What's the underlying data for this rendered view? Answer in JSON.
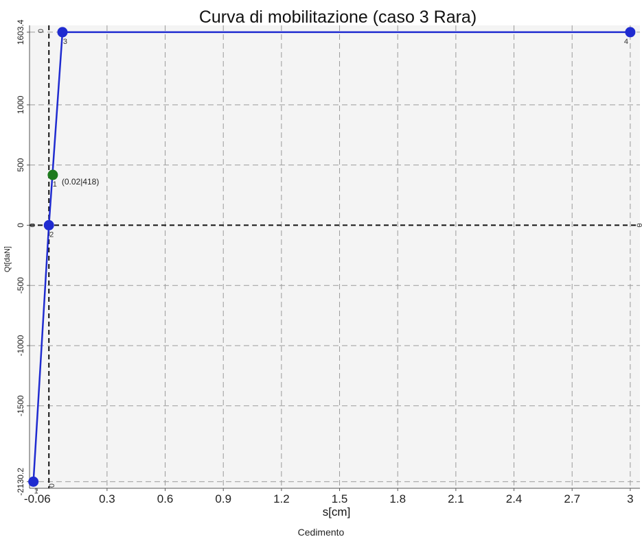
{
  "caption": "Cedimento",
  "chart_data": {
    "type": "line",
    "title": "Curva di mobilitazione (caso 3 Rara)",
    "xlabel": "s[cm]",
    "ylabel": "Qt[daN]",
    "xlim": [
      -0.1,
      3.05
    ],
    "ylim": [
      -2185,
      1660
    ],
    "x_ticks": [
      -0.06,
      0.3,
      0.6,
      0.9,
      1.2,
      1.5,
      1.8,
      2.1,
      2.4,
      2.7,
      3
    ],
    "y_ticks": [
      -2130.2,
      -1500,
      -1000,
      -500,
      0,
      500,
      1000,
      1603.4
    ],
    "x_tick_labels": [
      "-0.06",
      "0.3",
      "0.6",
      "0.9",
      "1.2",
      "1.5",
      "1.8",
      "2.1",
      "2.4",
      "2.7",
      "3"
    ],
    "y_tick_labels": [
      "-2130.2",
      "-1500",
      "-1000",
      "-500",
      "0",
      "500",
      "1000",
      "1603.4"
    ],
    "grid": true,
    "series": [
      {
        "color": "#1f2bd0",
        "points": [
          {
            "x": -0.08,
            "y": -2130.2,
            "label": "1"
          },
          {
            "x": 0.0,
            "y": 0,
            "label": "2"
          },
          {
            "x": 0.07,
            "y": 1603.4,
            "label": "3"
          },
          {
            "x": 3.0,
            "y": 1603.4,
            "label": "4"
          }
        ]
      }
    ],
    "highlight_point": {
      "x": 0.02,
      "y": 418,
      "label": "(0.02|418)",
      "index_label": "1",
      "color": "#1e7a1e"
    },
    "reference_lines": [
      {
        "axis": "y",
        "value": 0,
        "label_left": "0",
        "label_right": "0"
      },
      {
        "axis": "x",
        "value": 0,
        "label_top": "0",
        "label_bottom": "0"
      }
    ]
  }
}
